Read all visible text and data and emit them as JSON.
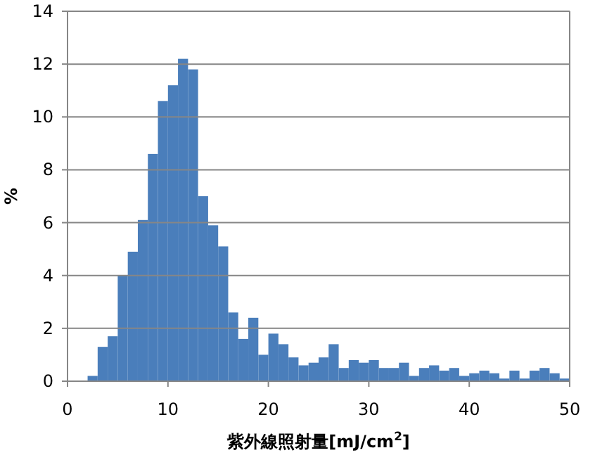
{
  "chart_data": {
    "type": "histogram",
    "xlabel": "紫外線照射量[mJ/cm$^{2}$]",
    "ylabel": "%",
    "bins": [
      2,
      3,
      4,
      5,
      6,
      7,
      8,
      9,
      10,
      11,
      12,
      13,
      14,
      15,
      16,
      17,
      18,
      19,
      20,
      21,
      22,
      23,
      24,
      25,
      26,
      27,
      28,
      29,
      30,
      31,
      32,
      33,
      34,
      35,
      36,
      37,
      38,
      39,
      40,
      41,
      42,
      43,
      44,
      45,
      46,
      47,
      48,
      49,
      50
    ],
    "values": [
      0.2,
      1.3,
      1.7,
      4.0,
      4.9,
      6.1,
      8.6,
      10.6,
      11.2,
      12.2,
      11.8,
      7.0,
      5.9,
      5.1,
      2.6,
      1.6,
      2.4,
      1.0,
      1.8,
      1.4,
      0.9,
      0.6,
      0.7,
      0.9,
      1.4,
      0.5,
      0.8,
      0.7,
      0.8,
      0.5,
      0.5,
      0.7,
      0.2,
      0.5,
      0.6,
      0.4,
      0.5,
      0.2,
      0.3,
      0.4,
      0.3,
      0.1,
      0.4,
      0.1,
      0.4,
      0.5,
      0.3,
      0.1
    ],
    "color": "#4a7ebb",
    "xlim": [
      0,
      50
    ],
    "xticks": [
      0,
      10,
      20,
      30,
      40,
      50
    ],
    "ylim": [
      0,
      14
    ],
    "yticks": [
      0,
      2,
      4,
      6,
      8,
      10,
      12,
      14
    ],
    "grid": "y",
    "legend": false
  }
}
